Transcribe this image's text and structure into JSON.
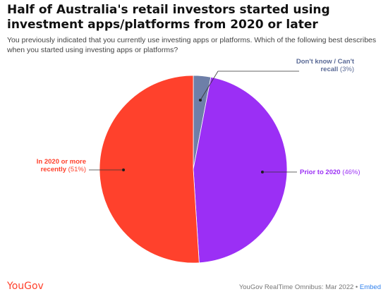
{
  "title": "Half of Australia's retail investors started using investment apps/platforms from 2020 or later",
  "subtitle": "You previously indicated that you currently use investing apps or platforms. Which of the following best describes when you started using investing apps or platforms?",
  "footer": {
    "brand": "YouGov",
    "source": "YouGov RealTime Omnibus: Mar 2022",
    "separator": " • ",
    "embed": "Embed"
  },
  "chart_data": {
    "type": "pie",
    "slices": [
      {
        "label_bold": "Don't know / Can't recall",
        "pct_text": "(3%)",
        "value": 3,
        "color": "#6e7fa8"
      },
      {
        "label_bold": "Prior to 2020",
        "pct_text": "(46%)",
        "value": 46,
        "color": "#9b2ff5"
      },
      {
        "label_bold": "In 2020 or more recently",
        "pct_text": "(51%)",
        "value": 51,
        "color": "#ff412c"
      }
    ]
  }
}
